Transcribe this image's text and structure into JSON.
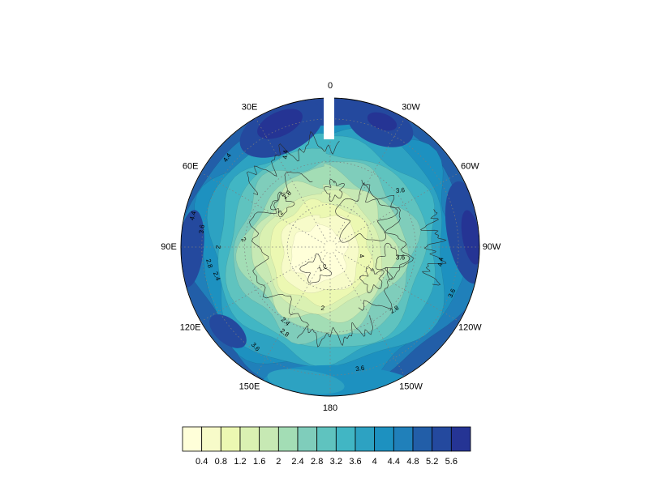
{
  "figure": {
    "background": "#ffffff"
  },
  "chart_data": {
    "type": "heatmap",
    "subtype": "filled-contour-polar-map",
    "title": "",
    "projection": "north polar view, 0 longitude at top, east longitudes on left, west on right",
    "longitude_labels": [
      {
        "text": "0",
        "angle": 0
      },
      {
        "text": "30W",
        "angle": 30
      },
      {
        "text": "60W",
        "angle": 60
      },
      {
        "text": "90W",
        "angle": 90
      },
      {
        "text": "120W",
        "angle": 120
      },
      {
        "text": "150W",
        "angle": 150
      },
      {
        "text": "180",
        "angle": 180
      },
      {
        "text": "150E",
        "angle": 210
      },
      {
        "text": "120E",
        "angle": 240
      },
      {
        "text": "90E",
        "angle": 270
      },
      {
        "text": "60E",
        "angle": 300
      },
      {
        "text": "30E",
        "angle": 330
      }
    ],
    "contour_levels": [
      0.4,
      0.8,
      1.2,
      1.6,
      2,
      2.4,
      2.8,
      3.2,
      3.6,
      4,
      4.4,
      4.8,
      5.2,
      5.6
    ],
    "colorbar": {
      "orientation": "horizontal",
      "ticks": [
        "0.4",
        "0.8",
        "1.2",
        "1.6",
        "2",
        "2.4",
        "2.8",
        "3.2",
        "3.6",
        "4",
        "4.4",
        "4.8",
        "5.2",
        "5.6"
      ],
      "colors": [
        "#ffffd9",
        "#f7fbc9",
        "#ecf8b2",
        "#daf1b2",
        "#c7e9b4",
        "#a3ddb5",
        "#7fcdbb",
        "#5fc3bf",
        "#41b6c4",
        "#2da2c2",
        "#1d91c0",
        "#2080ba",
        "#225ea8",
        "#24499e",
        "#253494"
      ]
    },
    "field_pattern": "lowest values (0.4-1.6, pale yellow) centered near the pole, increasing outward to 4-5.6 (dark blue) at the rim; darkest patches near 0/30E and 30W at top, along the 60W-90W rim and the 90E rim; white data-gap notch at 0 longitude",
    "contour_labels": [
      {
        "text": "4.4",
        "fx": -0.69,
        "fy": -0.6,
        "rot": -55
      },
      {
        "text": "4.4",
        "fx": -0.3,
        "fy": -0.62,
        "rot": -85
      },
      {
        "text": "2.8",
        "fx": -0.29,
        "fy": -0.35,
        "rot": -42
      },
      {
        "text": "2",
        "fx": -0.33,
        "fy": -0.23,
        "rot": -50
      },
      {
        "text": "4.4",
        "fx": -0.92,
        "fy": -0.21,
        "rot": -75
      },
      {
        "text": "3.6",
        "fx": -0.86,
        "fy": -0.12,
        "rot": -82
      },
      {
        "text": "2",
        "fx": -0.75,
        "fy": 0,
        "rot": -87
      },
      {
        "text": "2.8",
        "fx": -0.81,
        "fy": 0.11,
        "rot": 75
      },
      {
        "text": "2.4",
        "fx": -0.76,
        "fy": 0.195,
        "rot": 68
      },
      {
        "text": "3.6",
        "fx": 0.47,
        "fy": -0.38,
        "rot": -5
      },
      {
        "text": "3.6",
        "fx": 0.47,
        "fy": 0.07,
        "rot": 0
      },
      {
        "text": "4",
        "fx": 0.21,
        "fy": 0.06,
        "rot": 78
      },
      {
        "text": "4.4",
        "fx": 0.74,
        "fy": 0.1,
        "rot": -80
      },
      {
        "text": "3.6",
        "fx": 0.815,
        "fy": 0.31,
        "rot": -65
      },
      {
        "text": "2.8",
        "fx": 0.43,
        "fy": 0.42,
        "rot": -33
      },
      {
        "text": "2",
        "fx": -0.05,
        "fy": 0.41,
        "rot": 8
      },
      {
        "text": "2.4",
        "fx": -0.3,
        "fy": 0.5,
        "rot": 42
      },
      {
        "text": "2.8",
        "fx": -0.305,
        "fy": 0.575,
        "rot": 38
      },
      {
        "text": "3.6",
        "fx": -0.5,
        "fy": 0.67,
        "rot": 48
      },
      {
        "text": "3.6",
        "fx": 0.2,
        "fy": 0.815,
        "rot": -8
      },
      {
        "text": "1.2",
        "fx": -0.05,
        "fy": 0.14,
        "rot": -25
      },
      {
        "text": "2",
        "fx": -0.58,
        "fy": -0.05,
        "rot": 55
      }
    ],
    "grid": {
      "lat_circle_fractions": [
        0.287,
        0.573,
        0.86
      ],
      "lon_line_spacing_deg": 30,
      "style": "dotted gray graticule"
    },
    "gap_notch": {
      "angle_deg": 0,
      "description": "white wedge of missing data at top of disk"
    }
  }
}
